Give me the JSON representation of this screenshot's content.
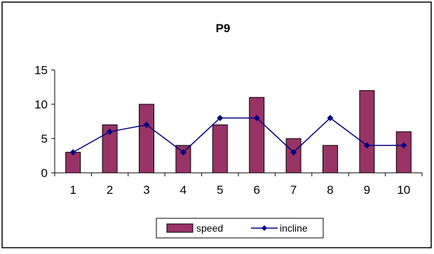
{
  "chart_data": {
    "type": "bar",
    "title": "P9",
    "xlabel": "",
    "ylabel": "",
    "categories": [
      "1",
      "2",
      "3",
      "4",
      "5",
      "6",
      "7",
      "8",
      "9",
      "10"
    ],
    "ylim": [
      0,
      15
    ],
    "yticks": [
      "0",
      "5",
      "10",
      "15"
    ],
    "grid": false,
    "legend_position": "bottom",
    "series": [
      {
        "name": "speed",
        "kind": "bar",
        "color": "#993366",
        "values": [
          3,
          7,
          10,
          4,
          7,
          11,
          5,
          4,
          12,
          6
        ]
      },
      {
        "name": "incline",
        "kind": "line",
        "marker": "diamond",
        "color": "#000080",
        "values": [
          3,
          6,
          7,
          3,
          8,
          8,
          3,
          8,
          4,
          4
        ]
      }
    ]
  }
}
